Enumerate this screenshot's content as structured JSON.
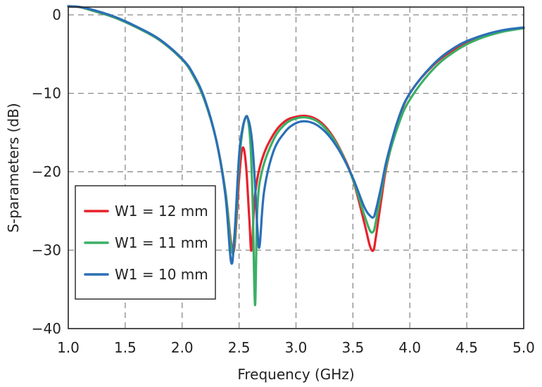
{
  "chart_data": {
    "type": "line",
    "title": "",
    "xlabel": "Frequency (GHz)",
    "ylabel": "S-parameters (dB)",
    "xlim": [
      1.0,
      5.0
    ],
    "ylim": [
      -40,
      1
    ],
    "xticks": [
      "1.0",
      "1.5",
      "2.0",
      "2.5",
      "3.0",
      "3.5",
      "4.0",
      "4.5",
      "5.0"
    ],
    "yticks": [
      "0",
      "−10",
      "−20",
      "−30",
      "−40"
    ],
    "grid": true,
    "legend_position": "lower-left",
    "series": [
      {
        "name": "W1 = 12 mm",
        "color": "#e8212b",
        "x": [
          1.0,
          1.1,
          1.2,
          1.4,
          1.6,
          1.8,
          2.0,
          2.1,
          2.2,
          2.3,
          2.38,
          2.43,
          2.46,
          2.5,
          2.53,
          2.56,
          2.59,
          2.61,
          2.64,
          2.7,
          2.8,
          2.9,
          3.0,
          3.1,
          3.2,
          3.3,
          3.4,
          3.5,
          3.6,
          3.65,
          3.68,
          3.7,
          3.75,
          3.8,
          3.9,
          4.0,
          4.2,
          4.4,
          4.6,
          4.8,
          5.0
        ],
        "y": [
          1.1,
          1.0,
          0.6,
          -0.3,
          -1.6,
          -3.2,
          -5.7,
          -7.8,
          -11.0,
          -16.0,
          -22.5,
          -29.0,
          -29.5,
          -21.0,
          -17.0,
          -19.0,
          -26.0,
          -30.0,
          -23.0,
          -18.5,
          -15.3,
          -13.6,
          -13.0,
          -12.9,
          -13.5,
          -15.0,
          -17.5,
          -21.0,
          -26.5,
          -29.5,
          -30.0,
          -28.5,
          -23.5,
          -19.0,
          -13.5,
          -10.0,
          -6.5,
          -4.3,
          -2.9,
          -2.1,
          -1.7
        ]
      },
      {
        "name": "W1 = 11 mm",
        "color": "#3aaf66",
        "x": [
          1.0,
          1.1,
          1.2,
          1.4,
          1.6,
          1.8,
          2.0,
          2.1,
          2.2,
          2.3,
          2.38,
          2.43,
          2.46,
          2.5,
          2.53,
          2.56,
          2.58,
          2.6,
          2.62,
          2.64,
          2.66,
          2.7,
          2.8,
          2.9,
          3.0,
          3.1,
          3.2,
          3.3,
          3.4,
          3.5,
          3.6,
          3.65,
          3.68,
          3.7,
          3.75,
          3.8,
          3.9,
          4.0,
          4.2,
          4.4,
          4.6,
          4.8,
          5.0
        ],
        "y": [
          1.1,
          1.0,
          0.6,
          -0.3,
          -1.6,
          -3.2,
          -5.7,
          -7.8,
          -11.0,
          -16.0,
          -22.5,
          -29.5,
          -29.0,
          -19.0,
          -14.8,
          -13.0,
          -13.5,
          -16.5,
          -24.0,
          -37.0,
          -25.0,
          -20.0,
          -16.0,
          -14.0,
          -13.2,
          -13.1,
          -13.7,
          -15.2,
          -17.6,
          -21.0,
          -25.5,
          -27.5,
          -27.6,
          -26.5,
          -22.5,
          -18.8,
          -14.0,
          -10.8,
          -7.0,
          -4.6,
          -3.1,
          -2.2,
          -1.7
        ]
      },
      {
        "name": "W1 = 10 mm",
        "color": "#2b6fb6",
        "x": [
          1.0,
          1.1,
          1.2,
          1.4,
          1.6,
          1.8,
          2.0,
          2.1,
          2.2,
          2.3,
          2.38,
          2.43,
          2.46,
          2.5,
          2.53,
          2.56,
          2.58,
          2.6,
          2.62,
          2.64,
          2.66,
          2.68,
          2.72,
          2.8,
          2.9,
          3.0,
          3.1,
          3.2,
          3.3,
          3.4,
          3.5,
          3.6,
          3.65,
          3.68,
          3.7,
          3.75,
          3.8,
          3.9,
          4.0,
          4.2,
          4.4,
          4.6,
          4.8,
          5.0
        ],
        "y": [
          1.1,
          1.0,
          0.7,
          -0.2,
          -1.5,
          -3.1,
          -5.6,
          -7.6,
          -10.8,
          -16.0,
          -23.0,
          -31.5,
          -28.0,
          -18.0,
          -14.5,
          -13.0,
          -13.3,
          -14.5,
          -17.0,
          -21.5,
          -27.0,
          -29.5,
          -22.5,
          -17.5,
          -15.0,
          -13.8,
          -13.6,
          -14.2,
          -15.6,
          -17.8,
          -20.8,
          -24.5,
          -25.6,
          -25.8,
          -25.0,
          -21.8,
          -18.3,
          -13.2,
          -10.0,
          -6.4,
          -4.1,
          -2.8,
          -2.0,
          -1.6
        ]
      }
    ]
  }
}
